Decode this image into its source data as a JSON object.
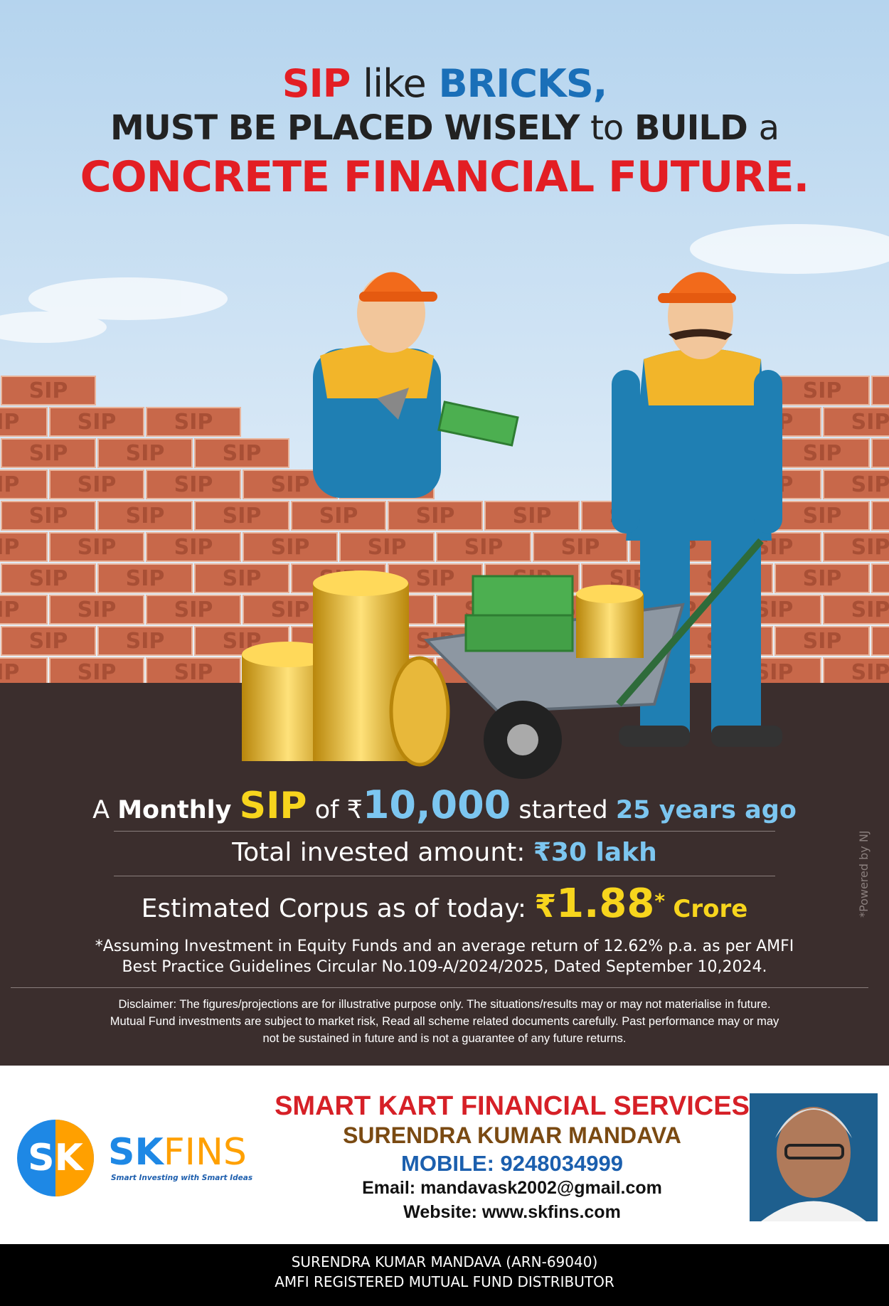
{
  "headline": {
    "line1": [
      "SIP",
      "like",
      "BRICKS,"
    ],
    "line2": [
      "MUST BE PLACED WISELY",
      "to",
      "BUILD",
      "a"
    ],
    "line3": "CONCRETE FINANCIAL FUTURE."
  },
  "brick_label": "SIP",
  "summary": {
    "line1": [
      "A",
      "Monthly",
      "SIP",
      "of",
      "₹",
      "10,000",
      "started",
      "25 years ago"
    ],
    "line2": [
      "Total invested amount:",
      "₹30 lakh"
    ],
    "line3": [
      "Estimated Corpus as of today:",
      "₹",
      "1.88",
      "*",
      "Crore"
    ]
  },
  "footnote": [
    "*Assuming Investment in Equity Funds and an average return of 12.62% p.a. as per AMFI",
    "Best Practice  Guidelines Circular No.109-A/2024/2025, Dated September 10,2024."
  ],
  "disclaimer": [
    "Disclaimer: The figures/projections are for illustrative purpose only. The situations/results may or may not materialise in future.",
    "Mutual Fund investments are subject to market risk, Read all scheme related documents carefully. Past performance may or may",
    "not be sustained in future and is not a guarantee of any future returns."
  ],
  "powered_by": "*Powered by NJ",
  "logo": {
    "mark": "SK",
    "name_1": "SK",
    "name_2": "FINS",
    "tagline": "Smart Investing with Smart Ideas"
  },
  "contact": {
    "company": "SMART KART FINANCIAL SERVICES",
    "name": "SURENDRA KUMAR MANDAVA",
    "mobile": "MOBILE: 9248034999",
    "email": "Email: mandavask2002@gmail.com",
    "website": "Website: www.skfins.com"
  },
  "footer": [
    "SURENDRA KUMAR MANDAVA (ARN-69040)",
    "AMFI REGISTERED MUTUAL FUND DISTRIBUTOR"
  ]
}
